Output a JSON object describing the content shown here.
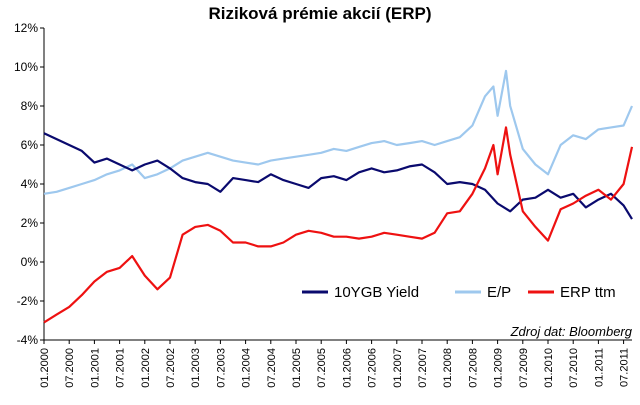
{
  "chart_data": {
    "type": "line",
    "title": "Riziková prémie akcií (ERP)",
    "xlabel": "",
    "ylabel": "",
    "ylim": [
      -4,
      12
    ],
    "y_ticks": [
      "12%",
      "10%",
      "8%",
      "6%",
      "4%",
      "2%",
      "0%",
      "-2%",
      "-4%"
    ],
    "x_ticks": [
      "01.2000",
      "07.2000",
      "01.2001",
      "07.2001",
      "01.2002",
      "07.2002",
      "01.2003",
      "07.2003",
      "01.2004",
      "07.2004",
      "01.2005",
      "07.2005",
      "01.2006",
      "07.2006",
      "01.2007",
      "07.2007",
      "01.2008",
      "07.2008",
      "01.2009",
      "07.2009",
      "01.2010",
      "07.2010",
      "01.2011",
      "07.2011"
    ],
    "grid": false,
    "legend_position": "bottom-right",
    "source_note": "Zdroj dat: Bloomberg",
    "series": [
      {
        "name": "10YGB Yield",
        "color": "#0a0a6e",
        "x": [
          "01.2000",
          "04.2000",
          "07.2000",
          "10.2000",
          "01.2001",
          "04.2001",
          "07.2001",
          "10.2001",
          "01.2002",
          "04.2002",
          "07.2002",
          "10.2002",
          "01.2003",
          "04.2003",
          "07.2003",
          "10.2003",
          "01.2004",
          "04.2004",
          "07.2004",
          "10.2004",
          "01.2005",
          "04.2005",
          "07.2005",
          "10.2005",
          "01.2006",
          "04.2006",
          "07.2006",
          "10.2006",
          "01.2007",
          "04.2007",
          "07.2007",
          "10.2007",
          "01.2008",
          "04.2008",
          "07.2008",
          "10.2008",
          "01.2009",
          "04.2009",
          "07.2009",
          "10.2009",
          "01.2010",
          "04.2010",
          "07.2010",
          "10.2010",
          "01.2011",
          "04.2011",
          "07.2011",
          "09.2011"
        ],
        "values": [
          6.6,
          6.3,
          6.0,
          5.7,
          5.1,
          5.3,
          5.0,
          4.7,
          5.0,
          5.2,
          4.8,
          4.3,
          4.1,
          4.0,
          3.6,
          4.3,
          4.2,
          4.1,
          4.5,
          4.2,
          4.0,
          3.8,
          4.3,
          4.4,
          4.2,
          4.6,
          4.8,
          4.6,
          4.7,
          4.9,
          5.0,
          4.6,
          4.0,
          4.1,
          4.0,
          3.7,
          3.0,
          2.6,
          3.2,
          3.3,
          3.7,
          3.3,
          3.5,
          2.8,
          3.2,
          3.5,
          2.9,
          2.2
        ]
      },
      {
        "name": "E/P",
        "color": "#9ec8ee",
        "x": [
          "01.2000",
          "04.2000",
          "07.2000",
          "10.2000",
          "01.2001",
          "04.2001",
          "07.2001",
          "10.2001",
          "01.2002",
          "04.2002",
          "07.2002",
          "10.2002",
          "01.2003",
          "04.2003",
          "07.2003",
          "10.2003",
          "01.2004",
          "04.2004",
          "07.2004",
          "10.2004",
          "01.2005",
          "04.2005",
          "07.2005",
          "10.2005",
          "01.2006",
          "04.2006",
          "07.2006",
          "10.2006",
          "01.2007",
          "04.2007",
          "07.2007",
          "10.2007",
          "01.2008",
          "04.2008",
          "07.2008",
          "10.2008",
          "12.2008",
          "01.2009",
          "03.2009",
          "04.2009",
          "07.2009",
          "10.2009",
          "01.2010",
          "04.2010",
          "07.2010",
          "10.2010",
          "01.2011",
          "04.2011",
          "07.2011",
          "09.2011"
        ],
        "values": [
          3.5,
          3.6,
          3.8,
          4.0,
          4.2,
          4.5,
          4.7,
          5.0,
          4.3,
          4.5,
          4.8,
          5.2,
          5.4,
          5.6,
          5.4,
          5.2,
          5.1,
          5.0,
          5.2,
          5.3,
          5.4,
          5.5,
          5.6,
          5.8,
          5.7,
          5.9,
          6.1,
          6.2,
          6.0,
          6.1,
          6.2,
          6.0,
          6.2,
          6.4,
          7.0,
          8.5,
          9.0,
          7.5,
          9.8,
          8.0,
          5.8,
          5.0,
          4.5,
          6.0,
          6.5,
          6.3,
          6.8,
          6.9,
          7.0,
          8.0
        ]
      },
      {
        "name": "ERP ttm",
        "color": "#ee1111",
        "x": [
          "01.2000",
          "04.2000",
          "07.2000",
          "10.2000",
          "01.2001",
          "04.2001",
          "07.2001",
          "10.2001",
          "01.2002",
          "04.2002",
          "07.2002",
          "10.2002",
          "01.2003",
          "04.2003",
          "07.2003",
          "10.2003",
          "01.2004",
          "04.2004",
          "07.2004",
          "10.2004",
          "01.2005",
          "04.2005",
          "07.2005",
          "10.2005",
          "01.2006",
          "04.2006",
          "07.2006",
          "10.2006",
          "01.2007",
          "04.2007",
          "07.2007",
          "10.2007",
          "01.2008",
          "04.2008",
          "07.2008",
          "10.2008",
          "12.2008",
          "01.2009",
          "03.2009",
          "04.2009",
          "07.2009",
          "10.2009",
          "01.2010",
          "04.2010",
          "07.2010",
          "10.2010",
          "01.2011",
          "04.2011",
          "07.2011",
          "09.2011"
        ],
        "values": [
          -3.1,
          -2.7,
          -2.3,
          -1.7,
          -1.0,
          -0.5,
          -0.3,
          0.3,
          -0.7,
          -1.4,
          -0.8,
          1.4,
          1.8,
          1.9,
          1.6,
          1.0,
          1.0,
          0.8,
          0.8,
          1.0,
          1.4,
          1.6,
          1.5,
          1.3,
          1.3,
          1.2,
          1.3,
          1.5,
          1.4,
          1.3,
          1.2,
          1.5,
          2.5,
          2.6,
          3.5,
          4.8,
          6.0,
          4.5,
          6.9,
          5.5,
          2.6,
          1.8,
          1.1,
          2.7,
          3.0,
          3.4,
          3.7,
          3.2,
          4.0,
          5.9
        ]
      }
    ]
  }
}
